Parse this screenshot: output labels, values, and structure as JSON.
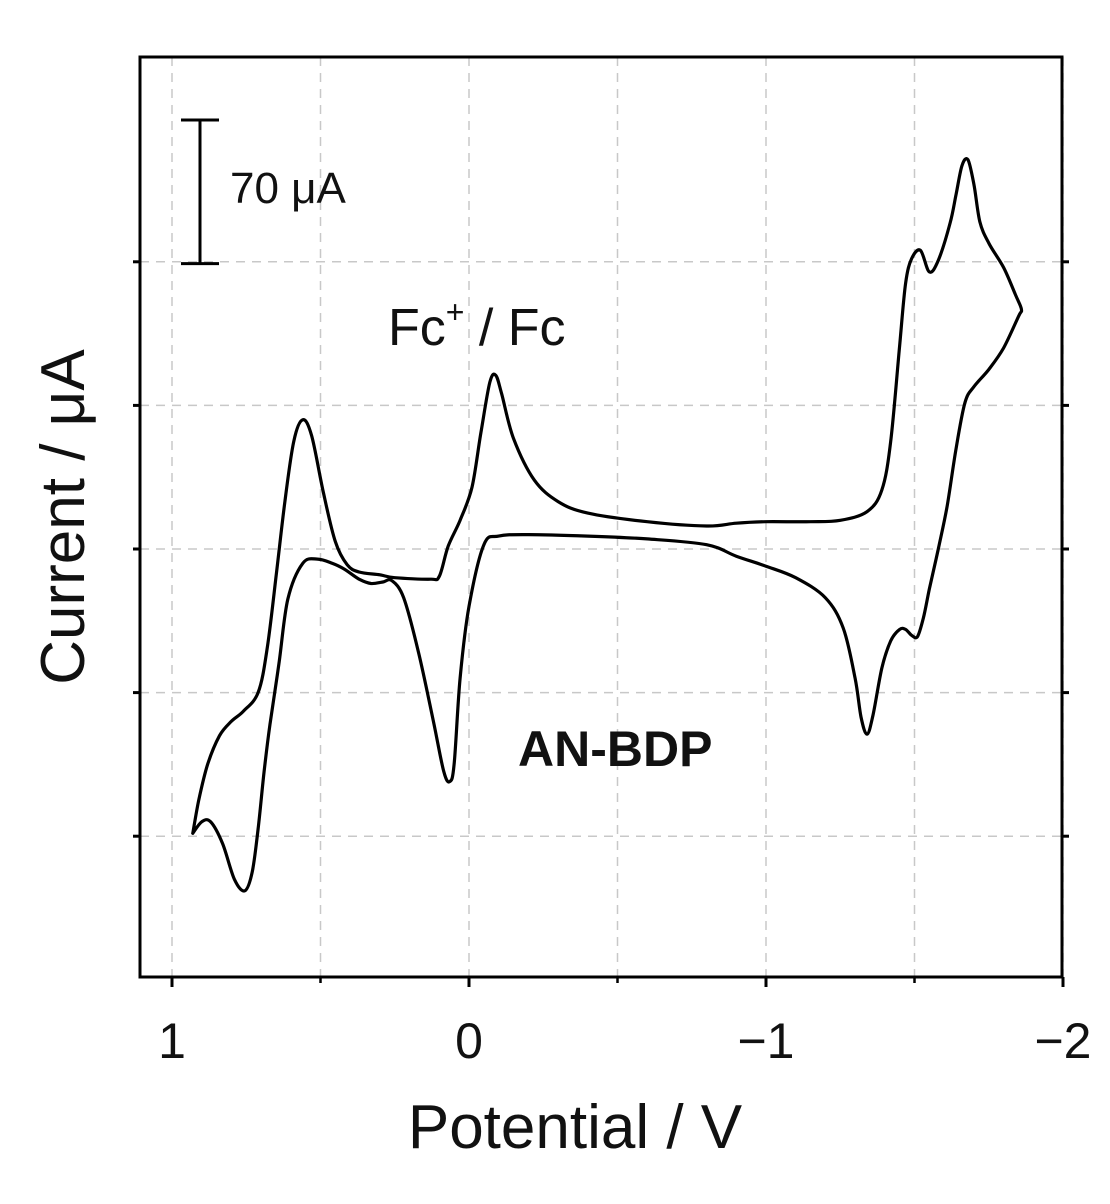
{
  "chart_data": {
    "type": "line",
    "title": "",
    "xlabel": "Potential / V",
    "ylabel": "Current / μA",
    "xlim": [
      1.1,
      -2.0
    ],
    "ylim": [
      -300,
      300
    ],
    "x_reversed": true,
    "x_ticks": [
      1,
      0,
      -1,
      -2
    ],
    "x_tick_labels": [
      "1",
      "0",
      "−1",
      "−2"
    ],
    "y_ticks": [
      -200,
      -100,
      0,
      100,
      200
    ],
    "grid": true,
    "scale_bar": {
      "label": "70 μA",
      "value": 100
    },
    "annotations": {
      "fc_main": "Fc",
      "fc_sup": "+",
      "fc_tail": " / Fc",
      "compound": "AN-BDP"
    },
    "series": [
      {
        "points": [
          [
            0.93,
            -198
          ],
          [
            0.9,
            -190
          ],
          [
            0.87,
            -190
          ],
          [
            0.83,
            -205
          ],
          [
            0.79,
            -230
          ],
          [
            0.755,
            -238
          ],
          [
            0.73,
            -225
          ],
          [
            0.71,
            -195
          ],
          [
            0.69,
            -155
          ],
          [
            0.67,
            -122
          ],
          [
            0.64,
            -80
          ],
          [
            0.61,
            -35
          ],
          [
            0.56,
            -10
          ],
          [
            0.51,
            -7
          ],
          [
            0.46,
            -10
          ],
          [
            0.42,
            -14
          ],
          [
            0.37,
            -21
          ],
          [
            0.33,
            -24
          ],
          [
            0.29,
            -23
          ],
          [
            0.26,
            -22
          ],
          [
            0.22,
            -34
          ],
          [
            0.17,
            -72
          ],
          [
            0.12,
            -120
          ],
          [
            0.085,
            -155
          ],
          [
            0.065,
            -162
          ],
          [
            0.05,
            -150
          ],
          [
            0.03,
            -90
          ],
          [
            0.0,
            -40
          ],
          [
            -0.05,
            3
          ],
          [
            -0.1,
            9
          ],
          [
            -0.2,
            10
          ],
          [
            -0.4,
            9
          ],
          [
            -0.6,
            7
          ],
          [
            -0.8,
            3
          ],
          [
            -0.9,
            -5
          ],
          [
            -1.0,
            -12
          ],
          [
            -1.1,
            -20
          ],
          [
            -1.2,
            -34
          ],
          [
            -1.26,
            -55
          ],
          [
            -1.3,
            -90
          ],
          [
            -1.32,
            -117
          ],
          [
            -1.34,
            -129
          ],
          [
            -1.36,
            -116
          ],
          [
            -1.39,
            -83
          ],
          [
            -1.42,
            -64
          ],
          [
            -1.45,
            -56
          ],
          [
            -1.47,
            -56
          ],
          [
            -1.49,
            -60
          ],
          [
            -1.51,
            -61
          ],
          [
            -1.53,
            -48
          ],
          [
            -1.55,
            -28
          ],
          [
            -1.58,
            0
          ],
          [
            -1.61,
            30
          ],
          [
            -1.64,
            70
          ],
          [
            -1.67,
            102
          ],
          [
            -1.7,
            113
          ],
          [
            -1.75,
            125
          ],
          [
            -1.8,
            140
          ],
          [
            -1.85,
            162
          ],
          [
            -1.86,
            167
          ],
          [
            -1.84,
            177
          ],
          [
            -1.8,
            196
          ],
          [
            -1.75,
            213
          ],
          [
            -1.72,
            228
          ],
          [
            -1.7,
            254
          ],
          [
            -1.68,
            271
          ],
          [
            -1.66,
            267
          ],
          [
            -1.64,
            247
          ],
          [
            -1.62,
            227
          ],
          [
            -1.58,
            201
          ],
          [
            -1.55,
            193
          ],
          [
            -1.52,
            208
          ],
          [
            -1.49,
            202
          ],
          [
            -1.47,
            185
          ],
          [
            -1.45,
            142
          ],
          [
            -1.42,
            75
          ],
          [
            -1.39,
            41
          ],
          [
            -1.34,
            26
          ],
          [
            -1.25,
            20
          ],
          [
            -1.15,
            19
          ],
          [
            -1.0,
            19
          ],
          [
            -0.9,
            18
          ],
          [
            -0.8,
            16
          ],
          [
            -0.6,
            19
          ],
          [
            -0.4,
            25
          ],
          [
            -0.3,
            33
          ],
          [
            -0.22,
            48
          ],
          [
            -0.15,
            77
          ],
          [
            -0.11,
            108
          ],
          [
            -0.09,
            121
          ],
          [
            -0.07,
            116
          ],
          [
            -0.04,
            81
          ],
          [
            -0.01,
            43
          ],
          [
            0.03,
            20
          ],
          [
            0.07,
            2
          ],
          [
            0.1,
            -19
          ],
          [
            0.13,
            -21
          ],
          [
            0.25,
            -20
          ],
          [
            0.3,
            -18
          ],
          [
            0.37,
            -16
          ],
          [
            0.41,
            -11
          ],
          [
            0.45,
            5
          ],
          [
            0.49,
            39
          ],
          [
            0.53,
            79
          ],
          [
            0.56,
            90
          ],
          [
            0.59,
            75
          ],
          [
            0.62,
            33
          ],
          [
            0.65,
            -20
          ],
          [
            0.68,
            -70
          ],
          [
            0.71,
            -100
          ],
          [
            0.76,
            -113
          ],
          [
            0.8,
            -120
          ],
          [
            0.84,
            -130
          ],
          [
            0.88,
            -150
          ],
          [
            0.91,
            -175
          ],
          [
            0.93,
            -198
          ]
        ]
      }
    ]
  }
}
